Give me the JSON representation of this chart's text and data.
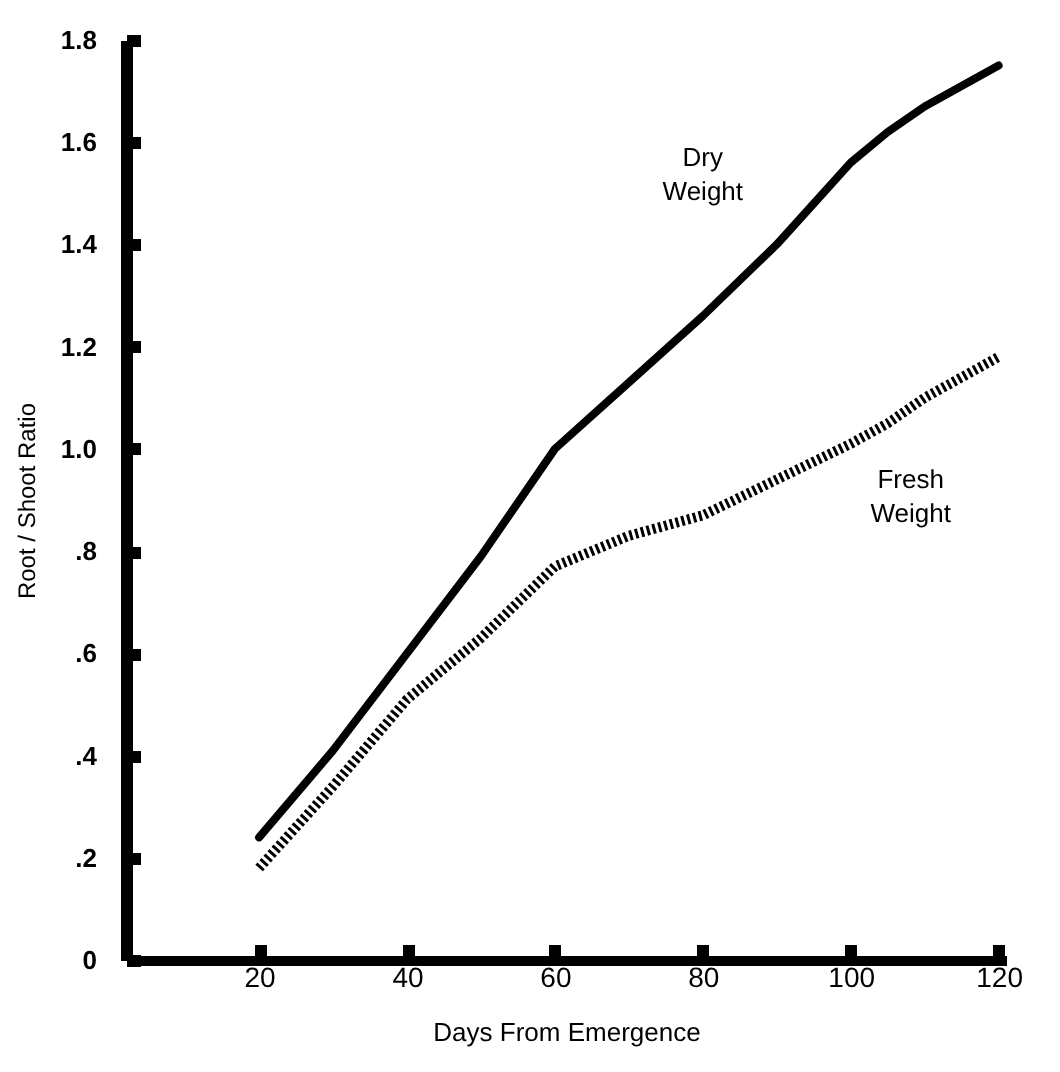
{
  "chart_data": {
    "type": "line",
    "xlabel": "Days From Emergence",
    "ylabel": "Root / Shoot  Ratio",
    "xlim": [
      2,
      121
    ],
    "xticks": [
      20,
      40,
      60,
      80,
      100,
      120
    ],
    "ylim": [
      0,
      1.8
    ],
    "yticks": [
      0,
      {
        "value": 0.2,
        "label": ".2"
      },
      {
        "value": 0.4,
        "label": ".4"
      },
      {
        "value": 0.6,
        "label": ".6"
      },
      {
        "value": 0.8,
        "label": ".8"
      },
      {
        "value": 1.0,
        "label": "1.0"
      },
      1.2,
      1.4,
      1.6,
      1.8
    ],
    "grid": false,
    "legend": false,
    "marker": "none",
    "x": [
      20,
      30,
      40,
      50,
      60,
      70,
      80,
      90,
      100,
      105,
      110,
      120
    ],
    "series": [
      {
        "name": "Dry Weight",
        "color": "#000000",
        "line_style": "solid",
        "values": [
          0.24,
          0.41,
          0.6,
          0.79,
          1.0,
          1.13,
          1.26,
          1.4,
          1.56,
          1.62,
          1.67,
          1.75
        ]
      },
      {
        "name": "Fresh Weight",
        "color": "#000000",
        "line_style": "dotted",
        "values": [
          0.18,
          0.34,
          0.51,
          0.63,
          0.77,
          0.83,
          0.87,
          0.94,
          1.01,
          1.05,
          1.1,
          1.18
        ]
      }
    ]
  }
}
